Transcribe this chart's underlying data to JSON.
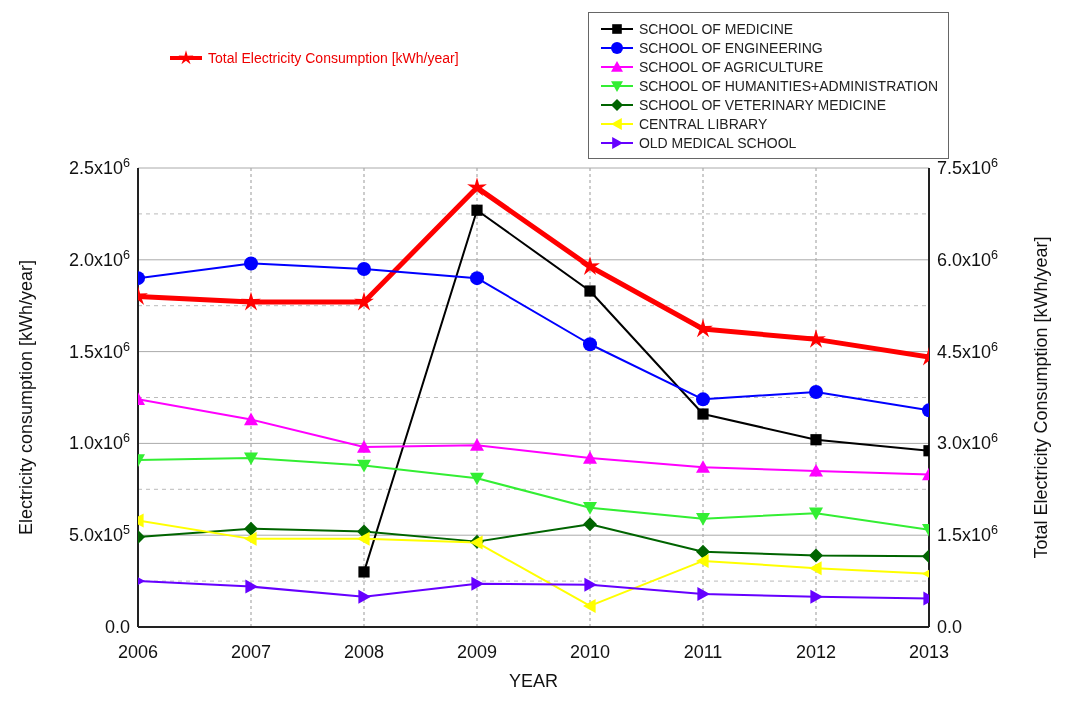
{
  "chart_data": {
    "type": "line",
    "xlabel": "YEAR",
    "ylabel": "Electricity consumption [kWh/year]",
    "y2label": "Total Electricity Consumption [kWh/year]",
    "x": [
      2006,
      2007,
      2008,
      2009,
      2010,
      2011,
      2012,
      2013
    ],
    "xlim": [
      2006,
      2013
    ],
    "xticks": [
      2006,
      2007,
      2008,
      2009,
      2010,
      2011,
      2012,
      2013
    ],
    "ylim": [
      0,
      2500000
    ],
    "yticks": [
      {
        "value": 0,
        "label": "0.0"
      },
      {
        "value": 250000,
        "label": null
      },
      {
        "value": 500000,
        "label": "5.0x10$^{5}$"
      },
      {
        "value": 750000,
        "label": null
      },
      {
        "value": 1000000,
        "label": "1.0x10$^{6}$"
      },
      {
        "value": 1250000,
        "label": null
      },
      {
        "value": 1500000,
        "label": "1.5x10$^{6}$"
      },
      {
        "value": 1750000,
        "label": null
      },
      {
        "value": 2000000,
        "label": "2.0x10$^{6}$"
      },
      {
        "value": 2250000,
        "label": null
      },
      {
        "value": 2500000,
        "label": "2.5x10$^{6}$"
      }
    ],
    "y2lim": [
      0,
      7500000
    ],
    "y2ticks": [
      {
        "value": 0,
        "label": "0.0"
      },
      {
        "value": 1500000,
        "label": "1.5x10$^{6}$"
      },
      {
        "value": 3000000,
        "label": "3.0x10$^{6}$"
      },
      {
        "value": 4500000,
        "label": "4.5x10$^{6}$"
      },
      {
        "value": 6000000,
        "label": "6.0x10$^{6}$"
      },
      {
        "value": 7500000,
        "label": "7.5x10$^{6}$"
      }
    ],
    "grid": true,
    "legend": "top right",
    "line_style": "solid",
    "series": [
      {
        "name": "Total Electricity Consumption [kWh/year]",
        "color": "#ff0000",
        "axis": "y2",
        "marker": "star",
        "values": [
          5400000,
          5310000,
          5310000,
          7180000,
          5890000,
          4870000,
          4700000,
          4410000
        ]
      },
      {
        "name": "SCHOOL OF MEDICINE",
        "color": "#000000",
        "marker": "square",
        "values": [
          null,
          null,
          300000,
          2270000,
          1830000,
          1160000,
          1020000,
          960000
        ]
      },
      {
        "name": "SCHOOL OF ENGINEERING",
        "color": "#0000ff",
        "marker": "circle",
        "values": [
          1900000,
          1980000,
          1950000,
          1900000,
          1540000,
          1240000,
          1280000,
          1180000
        ]
      },
      {
        "name": "SCHOOL OF AGRICULTURE",
        "color": "#ff00ff",
        "marker": "triangle",
        "values": [
          1240000,
          1130000,
          980000,
          990000,
          920000,
          870000,
          850000,
          830000
        ]
      },
      {
        "name": "SCHOOL OF HUMANITIES+ADMINISTRATION",
        "color": "#33ee33",
        "marker": "triangle-down",
        "values": [
          910000,
          920000,
          880000,
          810000,
          650000,
          590000,
          620000,
          530000
        ]
      },
      {
        "name": "SCHOOL OF VETERINARY MEDICINE",
        "color": "#006400",
        "marker": "diamond",
        "values": [
          490000,
          535000,
          520000,
          465000,
          560000,
          410000,
          390000,
          385000
        ]
      },
      {
        "name": "CENTRAL LIBRARY",
        "color": "#ffff00",
        "marker": "triangle-left",
        "values": [
          580000,
          480000,
          480000,
          460000,
          115000,
          360000,
          320000,
          290000
        ]
      },
      {
        "name": "OLD MEDICAL SCHOOL",
        "color": "#6600ff",
        "marker": "triangle-right",
        "values": [
          250000,
          220000,
          165000,
          235000,
          230000,
          180000,
          165000,
          155000
        ]
      }
    ]
  }
}
